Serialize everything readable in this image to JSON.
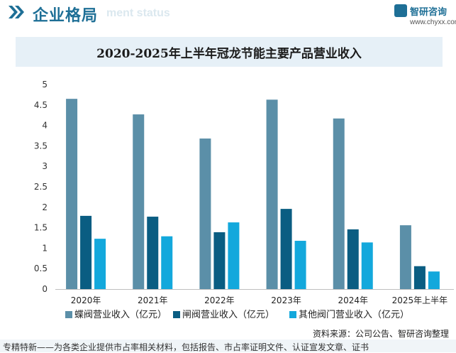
{
  "header": {
    "title": "企业格局",
    "subtitle": "ment status",
    "logo_name": "智研咨询",
    "logo_url": "www.chyxx.com"
  },
  "chart_data": {
    "type": "bar",
    "title": "2020-2025年上半年冠龙节能主要产品营业收入",
    "categories": [
      "2020年",
      "2021年",
      "2022年",
      "2023年",
      "2024年",
      "2025年上半年"
    ],
    "series": [
      {
        "name": "蝶阀营业收入（亿元）",
        "color": "#5b8fa8",
        "values": [
          4.65,
          4.27,
          3.68,
          4.63,
          4.17,
          1.56
        ]
      },
      {
        "name": "闸阀营业收入（亿元）",
        "color": "#0a5d82",
        "values": [
          1.79,
          1.77,
          1.39,
          1.96,
          1.46,
          0.56
        ]
      },
      {
        "name": "其他阀门营业收入（亿元）",
        "color": "#13a8dc",
        "values": [
          1.23,
          1.29,
          1.63,
          1.18,
          1.14,
          0.43
        ]
      }
    ],
    "ylim": [
      0,
      5
    ],
    "yticks": [
      "0",
      "0.5",
      "1",
      "1.5",
      "2",
      "2.5",
      "3",
      "3.5",
      "4",
      "4.5",
      "5"
    ],
    "legend_position": "bottom",
    "grid": false,
    "xlabel": "",
    "ylabel": ""
  },
  "source": "资料来源：公司公告、智研咨询整理",
  "footer": "专精特新——为各类企业提供市占率相关材料，包括报告、市占率证明文件、认证宣发文章、证书"
}
